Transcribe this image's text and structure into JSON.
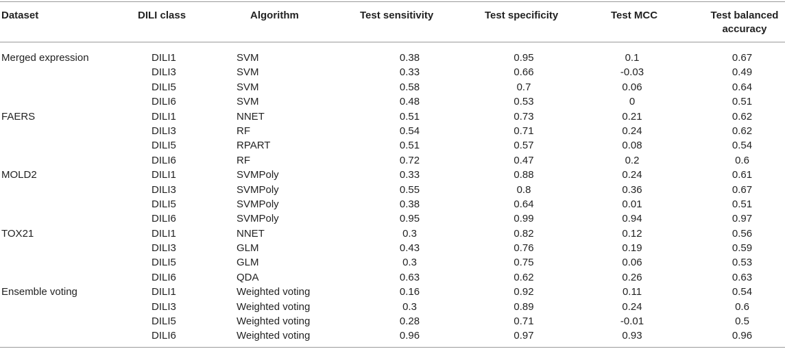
{
  "columns": {
    "dataset": "Dataset",
    "dili_class": "DILI class",
    "algorithm": "Algorithm",
    "sensitivity": "Test sensitivity",
    "specificity": "Test specificity",
    "mcc": "Test MCC",
    "balanced_accuracy": "Test balanced accuracy"
  },
  "rows": [
    {
      "dataset": "Merged expression",
      "dili_class": "DILI1",
      "algorithm": "SVM",
      "sensitivity": "0.38",
      "specificity": "0.95",
      "mcc": "0.1",
      "balanced_accuracy": "0.67"
    },
    {
      "dataset": "",
      "dili_class": "DILI3",
      "algorithm": "SVM",
      "sensitivity": "0.33",
      "specificity": "0.66",
      "mcc": "-0.03",
      "balanced_accuracy": "0.49"
    },
    {
      "dataset": "",
      "dili_class": "DILI5",
      "algorithm": "SVM",
      "sensitivity": "0.58",
      "specificity": "0.7",
      "mcc": "0.06",
      "balanced_accuracy": "0.64"
    },
    {
      "dataset": "",
      "dili_class": "DILI6",
      "algorithm": "SVM",
      "sensitivity": "0.48",
      "specificity": "0.53",
      "mcc": "0",
      "balanced_accuracy": "0.51"
    },
    {
      "dataset": "FAERS",
      "dili_class": "DILI1",
      "algorithm": "NNET",
      "sensitivity": "0.51",
      "specificity": "0.73",
      "mcc": "0.21",
      "balanced_accuracy": "0.62"
    },
    {
      "dataset": "",
      "dili_class": "DILI3",
      "algorithm": "RF",
      "sensitivity": "0.54",
      "specificity": "0.71",
      "mcc": "0.24",
      "balanced_accuracy": "0.62"
    },
    {
      "dataset": "",
      "dili_class": "DILI5",
      "algorithm": "RPART",
      "sensitivity": "0.51",
      "specificity": "0.57",
      "mcc": "0.08",
      "balanced_accuracy": "0.54"
    },
    {
      "dataset": "",
      "dili_class": "DILI6",
      "algorithm": "RF",
      "sensitivity": "0.72",
      "specificity": "0.47",
      "mcc": "0.2",
      "balanced_accuracy": "0.6"
    },
    {
      "dataset": "MOLD2",
      "dili_class": "DILI1",
      "algorithm": "SVMPoly",
      "sensitivity": "0.33",
      "specificity": "0.88",
      "mcc": "0.24",
      "balanced_accuracy": "0.61"
    },
    {
      "dataset": "",
      "dili_class": "DILI3",
      "algorithm": "SVMPoly",
      "sensitivity": "0.55",
      "specificity": "0.8",
      "mcc": "0.36",
      "balanced_accuracy": "0.67"
    },
    {
      "dataset": "",
      "dili_class": "DILI5",
      "algorithm": "SVMPoly",
      "sensitivity": "0.38",
      "specificity": "0.64",
      "mcc": "0.01",
      "balanced_accuracy": "0.51"
    },
    {
      "dataset": "",
      "dili_class": "DILI6",
      "algorithm": "SVMPoly",
      "sensitivity": "0.95",
      "specificity": "0.99",
      "mcc": "0.94",
      "balanced_accuracy": "0.97"
    },
    {
      "dataset": "TOX21",
      "dili_class": "DILI1",
      "algorithm": "NNET",
      "sensitivity": "0.3",
      "specificity": "0.82",
      "mcc": "0.12",
      "balanced_accuracy": "0.56"
    },
    {
      "dataset": "",
      "dili_class": "DILI3",
      "algorithm": "GLM",
      "sensitivity": "0.43",
      "specificity": "0.76",
      "mcc": "0.19",
      "balanced_accuracy": "0.59"
    },
    {
      "dataset": "",
      "dili_class": "DILI5",
      "algorithm": "GLM",
      "sensitivity": "0.3",
      "specificity": "0.75",
      "mcc": "0.06",
      "balanced_accuracy": "0.53"
    },
    {
      "dataset": "",
      "dili_class": "DILI6",
      "algorithm": "QDA",
      "sensitivity": "0.63",
      "specificity": "0.62",
      "mcc": "0.26",
      "balanced_accuracy": "0.63"
    },
    {
      "dataset": "Ensemble voting",
      "dili_class": "DILI1",
      "algorithm": "Weighted voting",
      "sensitivity": "0.16",
      "specificity": "0.92",
      "mcc": "0.11",
      "balanced_accuracy": "0.54"
    },
    {
      "dataset": "",
      "dili_class": "DILI3",
      "algorithm": "Weighted voting",
      "sensitivity": "0.3",
      "specificity": "0.89",
      "mcc": "0.24",
      "balanced_accuracy": "0.6"
    },
    {
      "dataset": "",
      "dili_class": "DILI5",
      "algorithm": "Weighted voting",
      "sensitivity": "0.28",
      "specificity": "0.71",
      "mcc": "-0.01",
      "balanced_accuracy": "0.5"
    },
    {
      "dataset": "",
      "dili_class": "DILI6",
      "algorithm": "Weighted voting",
      "sensitivity": "0.96",
      "specificity": "0.97",
      "mcc": "0.93",
      "balanced_accuracy": "0.96"
    }
  ]
}
